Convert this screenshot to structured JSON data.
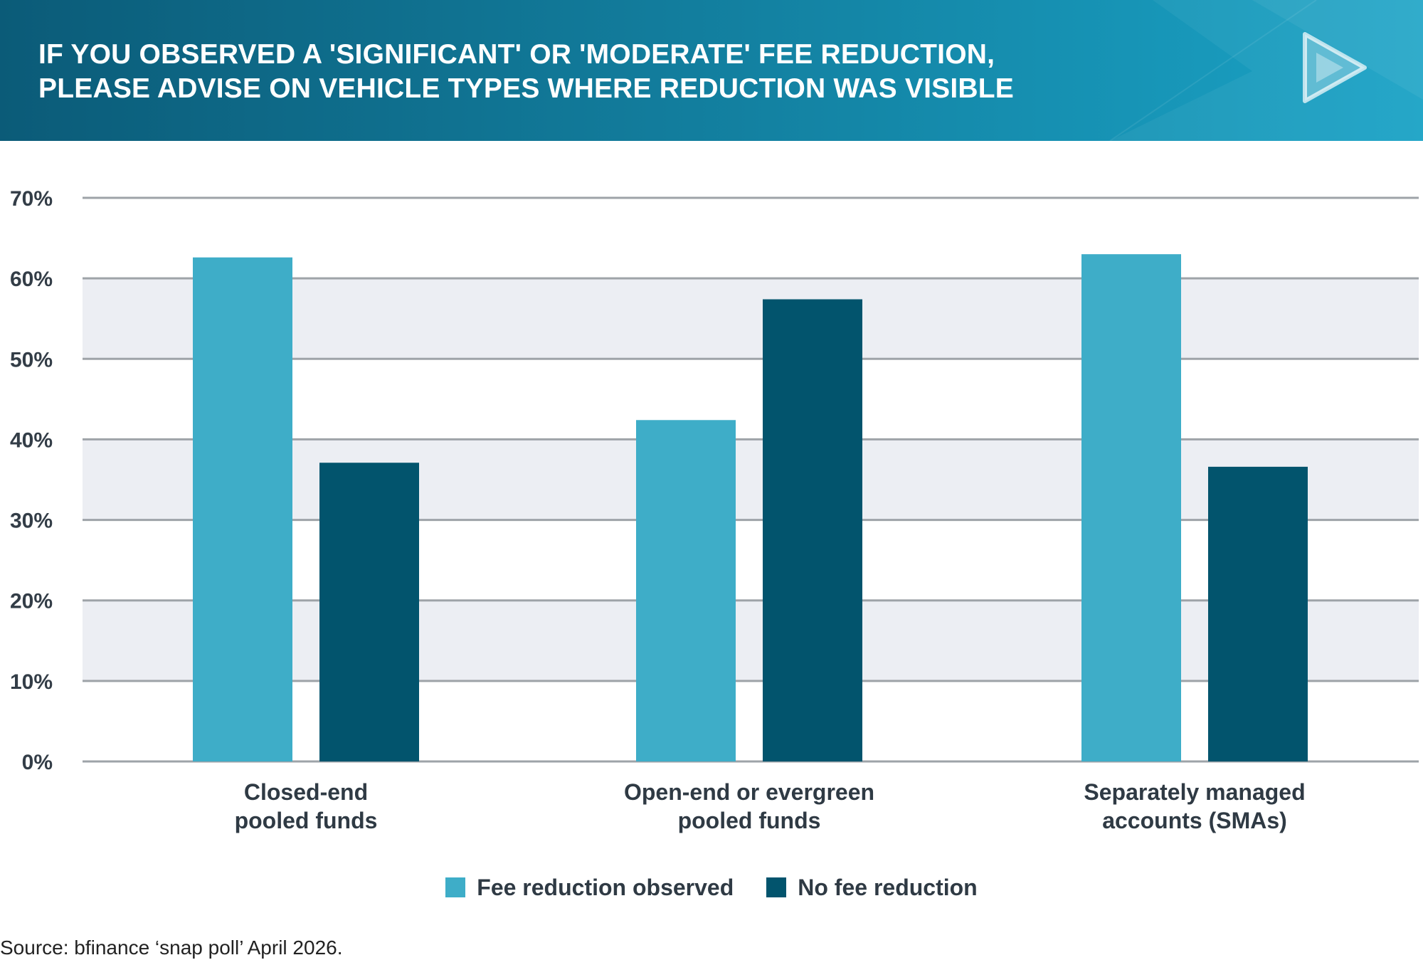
{
  "header": {
    "title_line_1": "IF YOU OBSERVED A 'SIGNIFICANT' OR 'MODERATE' FEE REDUCTION,",
    "title_line_2": "PLEASE ADVISE ON VEHICLE TYPES WHERE REDUCTION WAS VISIBLE",
    "gradient_start": "#0b5b78",
    "gradient_end": "#1aa3c6",
    "logo_icon": "play-triangle-icon"
  },
  "chart_data": {
    "type": "bar",
    "title": "IF YOU OBSERVED A 'SIGNIFICANT' OR 'MODERATE' FEE REDUCTION, PLEASE ADVISE ON VEHICLE TYPES WHERE REDUCTION WAS VISIBLE",
    "categories": [
      [
        "Closed-end",
        "pooled funds"
      ],
      [
        "Open-end or evergreen",
        "pooled funds"
      ],
      [
        "Separately managed",
        "accounts (SMAs)"
      ]
    ],
    "series": [
      {
        "name": "Fee reduction observed",
        "color": "#3eadc8",
        "values": [
          62.6,
          42.4,
          63.0
        ]
      },
      {
        "name": "No fee reduction",
        "color": "#02546d",
        "values": [
          37.1,
          57.4,
          36.6
        ]
      }
    ],
    "y_ticks": [
      "0%",
      "10%",
      "20%",
      "30%",
      "40%",
      "50%",
      "60%",
      "70%"
    ],
    "ylim": [
      0,
      70
    ],
    "y_unit": "%",
    "grid": true,
    "band_color": "#eceef3",
    "gridline_color": "#9ea3a8",
    "legend_position": "bottom-center",
    "xlabel": "",
    "ylabel": ""
  },
  "legend": {
    "items": [
      {
        "label": "Fee reduction observed",
        "color": "#3eadc8"
      },
      {
        "label": "No fee reduction",
        "color": "#02546d"
      }
    ]
  },
  "footer": {
    "source": "Source: bfinance ‘snap poll’ April 2026."
  }
}
